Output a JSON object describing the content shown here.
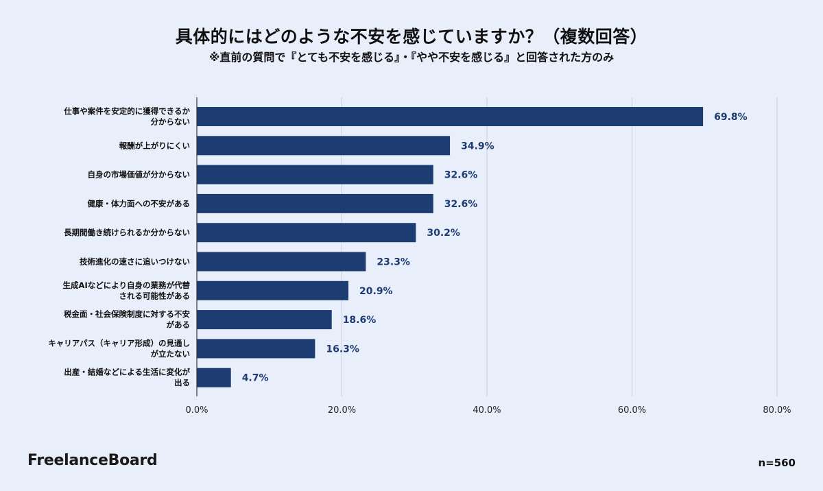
{
  "title": "具体的にはどのような不安を感じていますか？（複数回答）",
  "subtitle": "※直前の質問で『とても不安を感じる』・『やや不安を感じる』と回答された方のみ",
  "brand": "FreelanceBoard",
  "sample_size": "n=560",
  "colors": {
    "bar": "#1d3c72",
    "value_label": "#1d3c72",
    "background": "#e9eefb",
    "grid": "#c9cfdb"
  },
  "chart_data": {
    "type": "bar",
    "orientation": "horizontal",
    "categories": [
      [
        "仕事や案件を安定的に獲得できるか",
        "分からない"
      ],
      [
        "報酬が上がりにくい"
      ],
      [
        "自身の市場価値が分からない"
      ],
      [
        "健康・体力面への不安がある"
      ],
      [
        "長期間働き続けられるか分からない"
      ],
      [
        "技術進化の速さに追いつけない"
      ],
      [
        "生成AIなどにより自身の業務が代替",
        "される可能性がある"
      ],
      [
        "税金面・社会保険制度に対する不安",
        "がある"
      ],
      [
        "キャリアパス（キャリア形成）の見通し",
        "が立たない"
      ],
      [
        "出産・結婚などによる生活に変化が",
        "出る"
      ]
    ],
    "values": [
      69.8,
      34.9,
      32.6,
      32.6,
      30.2,
      23.3,
      20.9,
      18.6,
      16.3,
      4.7
    ],
    "value_labels": [
      "69.8%",
      "34.9%",
      "32.6%",
      "32.6%",
      "30.2%",
      "23.3%",
      "20.9%",
      "18.6%",
      "16.3%",
      "4.7%"
    ],
    "xlim": [
      0,
      80
    ],
    "x_ticks": [
      "0.0%",
      "20.0%",
      "40.0%",
      "60.0%",
      "80.0%"
    ],
    "grid": true
  }
}
